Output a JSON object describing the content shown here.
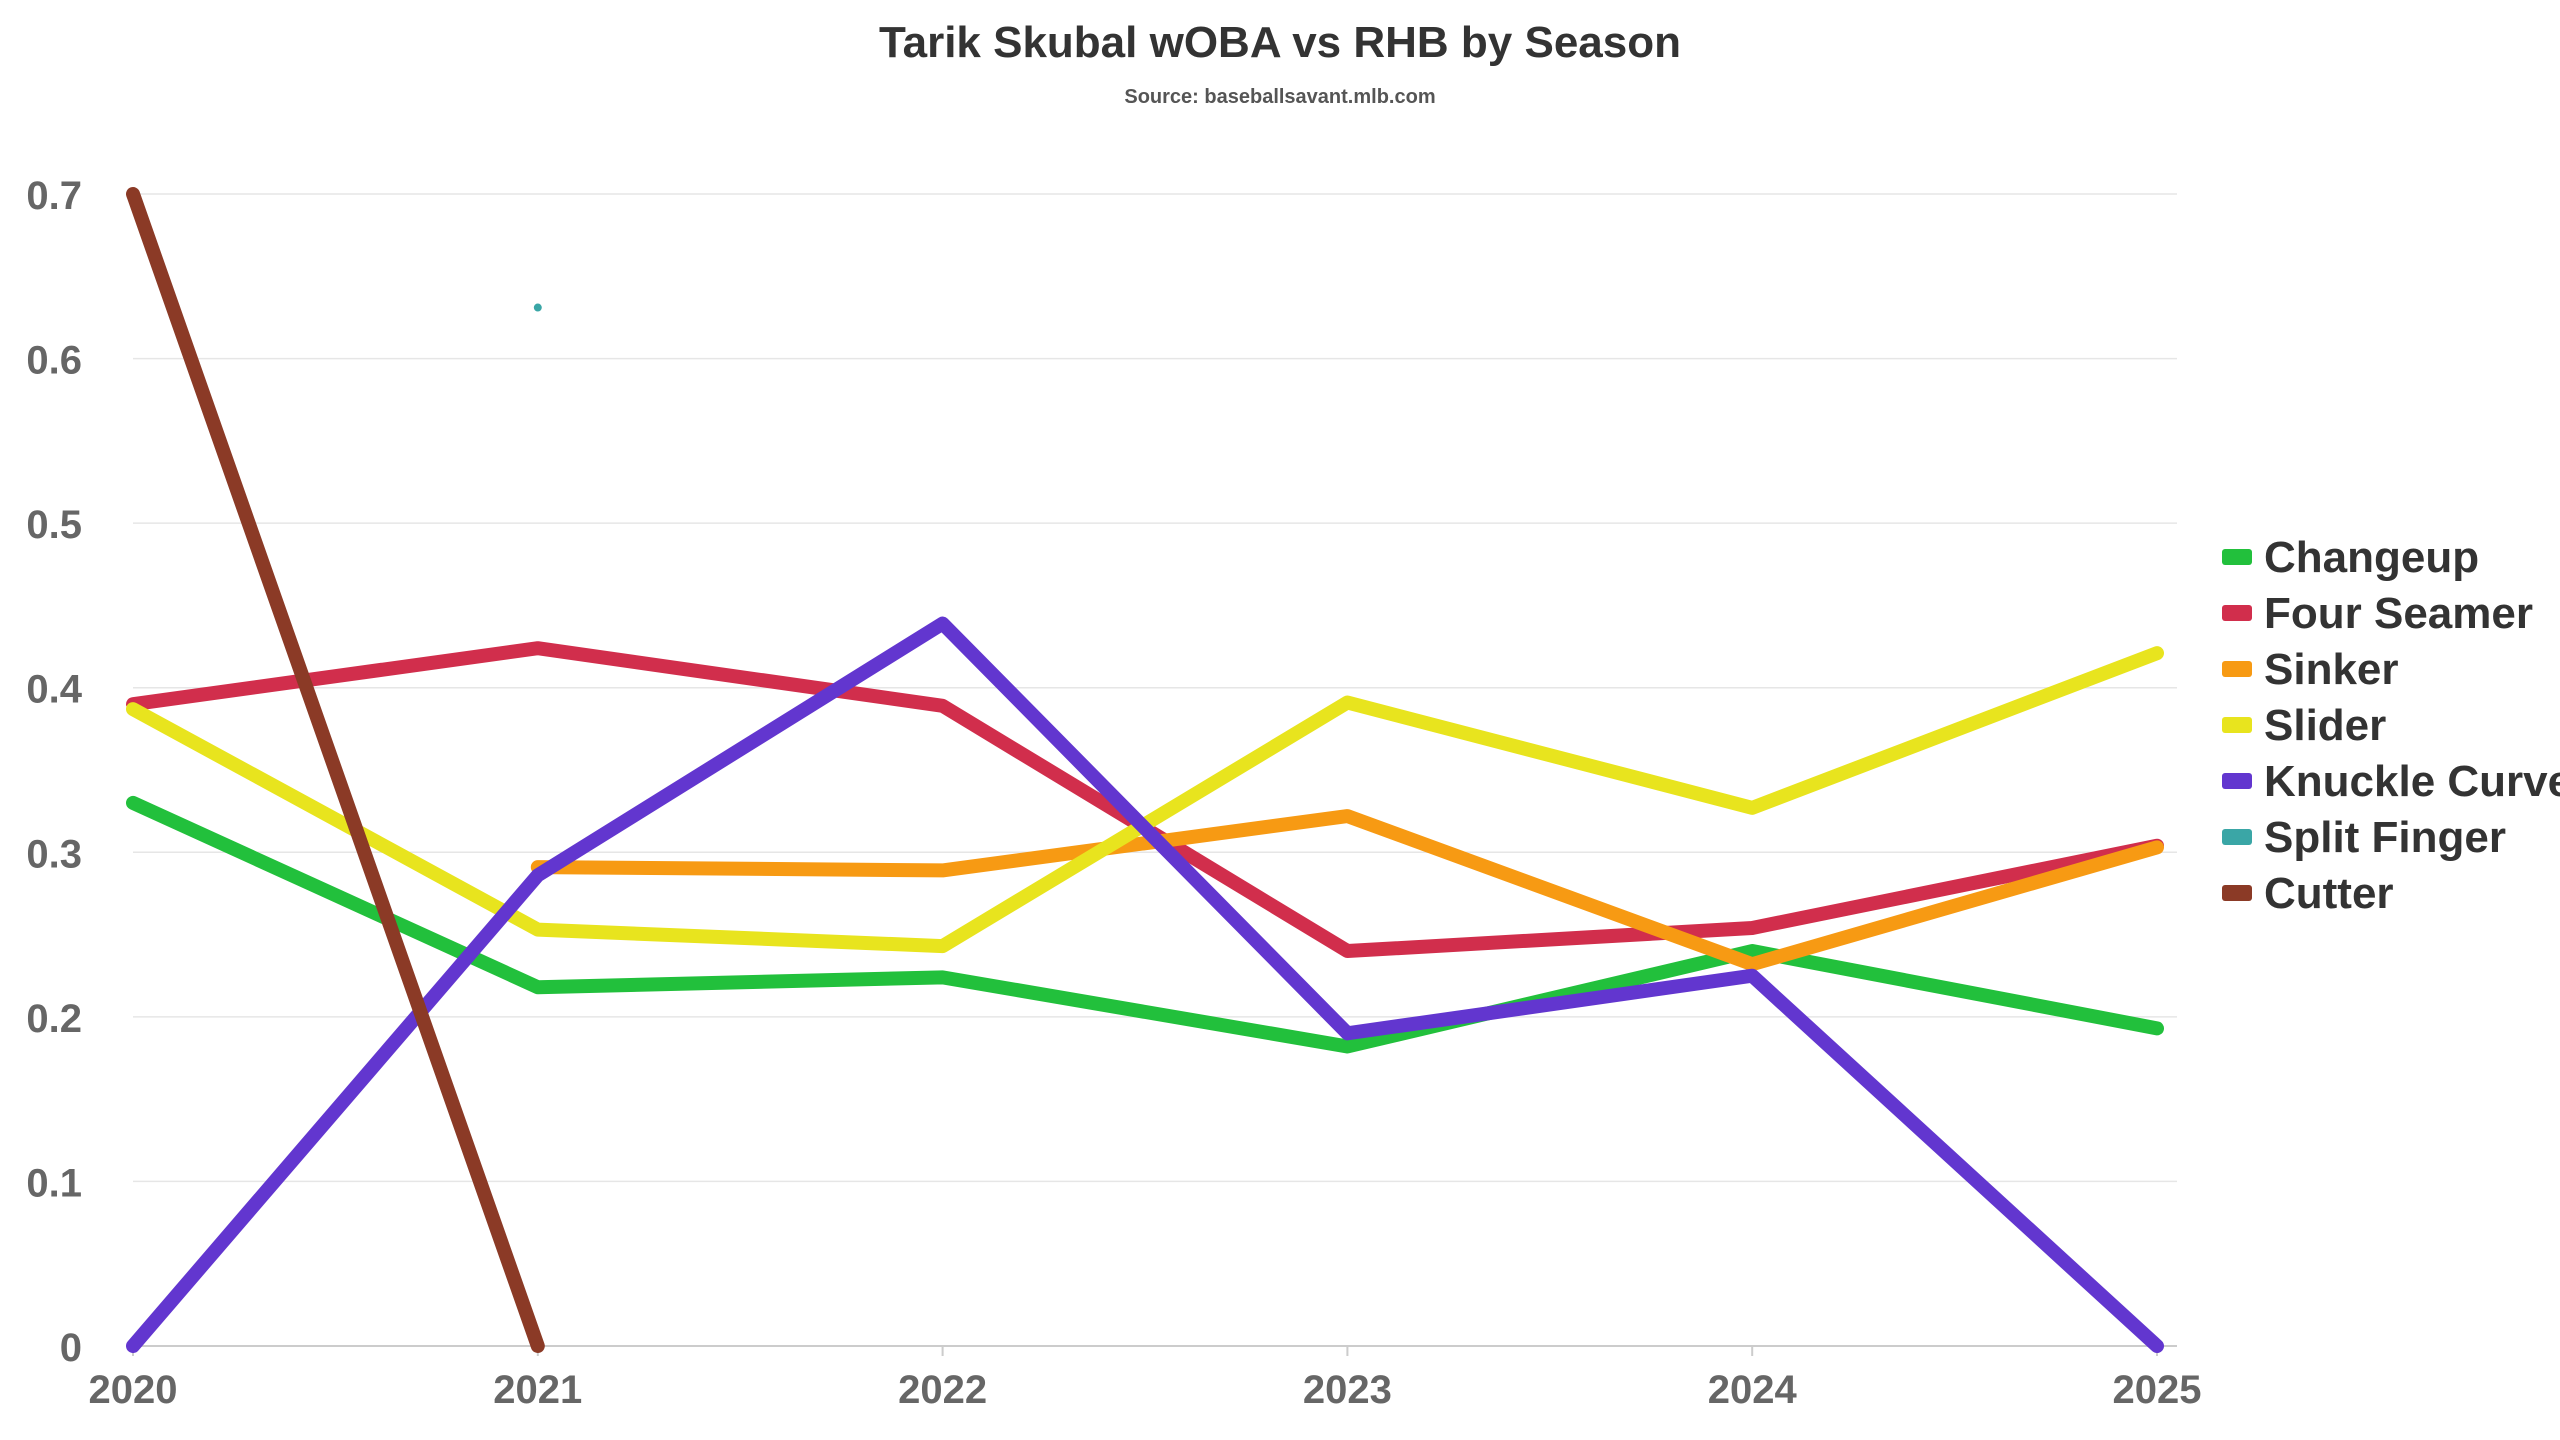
{
  "chart_data": {
    "type": "line",
    "title": "Tarik Skubal wOBA vs RHB by Season",
    "subtitle": "Source: baseballsavant.mlb.com",
    "xlabel": "",
    "ylabel": "",
    "x": [
      2020,
      2021,
      2022,
      2023,
      2024,
      2025
    ],
    "ylim": [
      0,
      0.7
    ],
    "yticks": [
      0,
      0.1,
      0.2,
      0.3,
      0.4,
      0.5,
      0.6,
      0.7
    ],
    "grid": true,
    "legend_position": "right",
    "series": [
      {
        "name": "Changeup",
        "color": "#22c03c",
        "values": [
          0.33,
          0.218,
          0.224,
          0.182,
          0.24,
          0.193
        ]
      },
      {
        "name": "Four Seamer",
        "color": "#d12e4c",
        "values": [
          0.39,
          0.424,
          0.389,
          0.24,
          0.254,
          0.304
        ]
      },
      {
        "name": "Sinker",
        "color": "#f79a13",
        "values": [
          null,
          0.291,
          0.289,
          0.322,
          0.232,
          0.303
        ]
      },
      {
        "name": "Slider",
        "color": "#e8e41e",
        "values": [
          0.387,
          0.253,
          0.243,
          0.391,
          0.327,
          0.421
        ]
      },
      {
        "name": "Knuckle Curve",
        "color": "#6236cf",
        "values": [
          0,
          0.286,
          0.439,
          0.19,
          0.225,
          0
        ]
      },
      {
        "name": "Split Finger",
        "color": "#3aa6a6",
        "values": [
          null,
          0.631,
          null,
          null,
          null,
          null
        ]
      },
      {
        "name": "Cutter",
        "color": "#8b3a26",
        "values": [
          0.7,
          0,
          null,
          null,
          null,
          null
        ]
      }
    ]
  }
}
